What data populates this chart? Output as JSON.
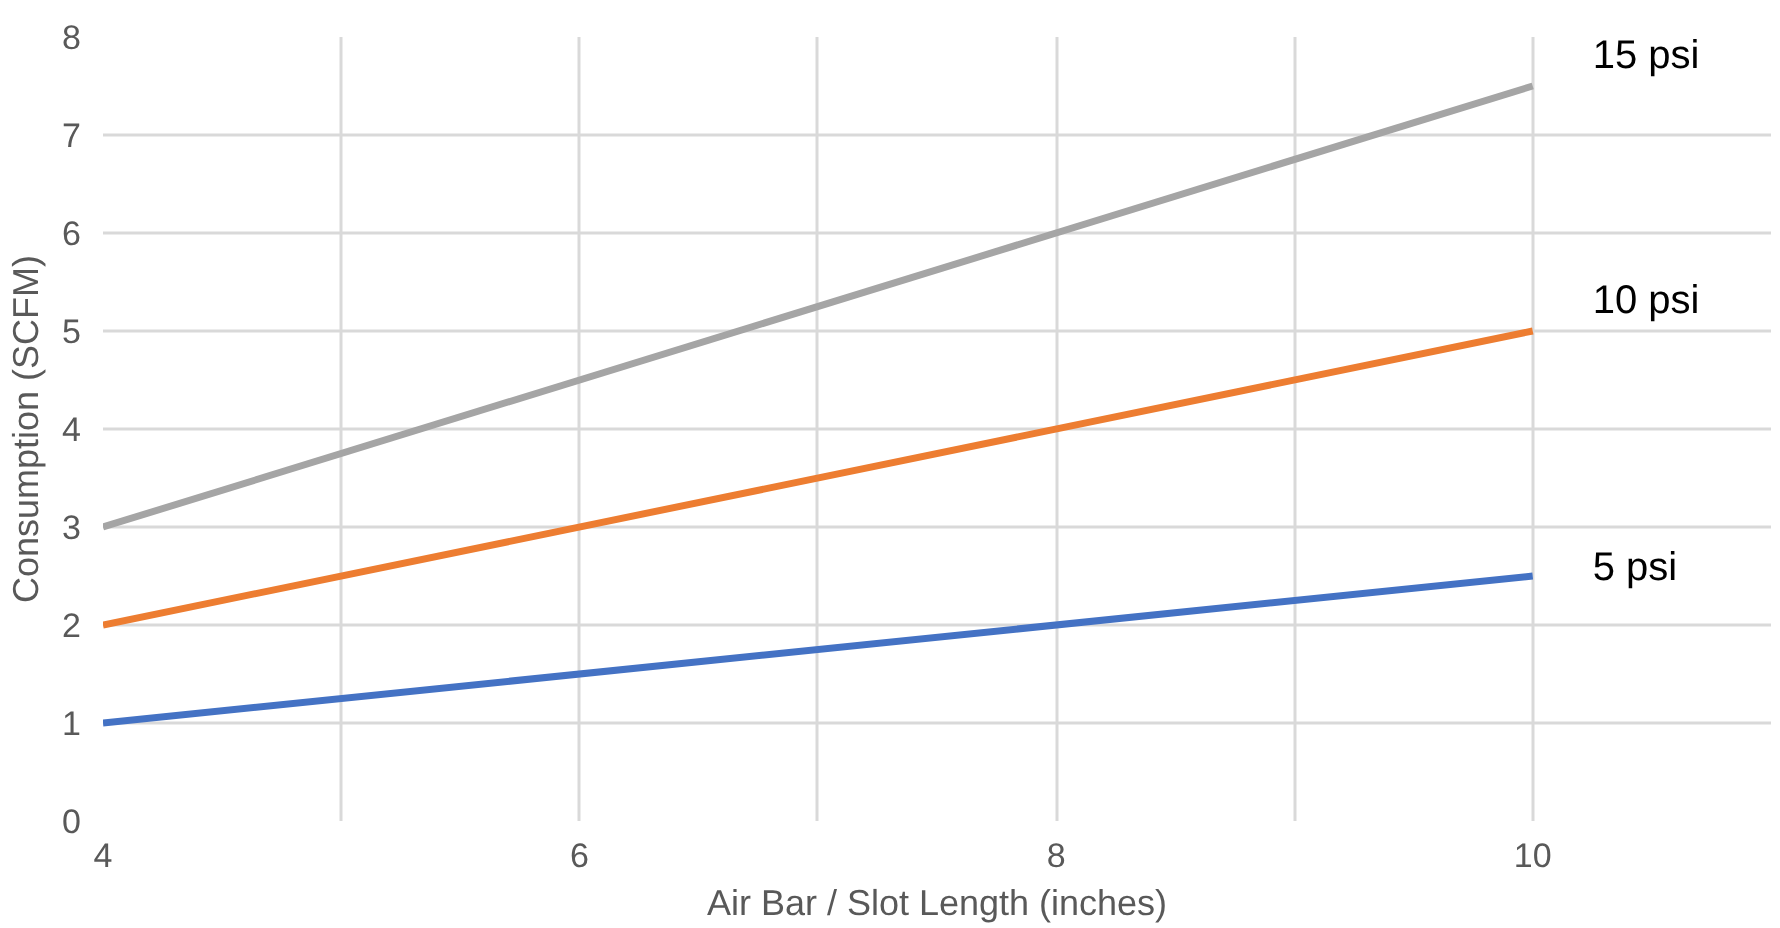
{
  "chart_data": {
    "type": "line",
    "xlabel": "Air Bar / Slot Length (inches)",
    "ylabel": "Consumption (SCFM)",
    "x": [
      4,
      10
    ],
    "series": [
      {
        "name": "5 psi",
        "color": "#4472c4",
        "values": [
          1,
          2.5
        ]
      },
      {
        "name": "10 psi",
        "color": "#ed7d31",
        "values": [
          2,
          5
        ]
      },
      {
        "name": "15 psi",
        "color": "#a5a5a5",
        "values": [
          3,
          7.5
        ]
      }
    ],
    "xlim": [
      4,
      11
    ],
    "ylim": [
      0,
      8
    ],
    "xticks": [
      4,
      {
        "value": 5,
        "label": null
      },
      6,
      {
        "value": 7,
        "label": null
      },
      8,
      {
        "value": 9,
        "label": null
      },
      10
    ],
    "yticks": [
      0,
      1,
      2,
      3,
      4,
      5,
      6,
      7,
      8
    ],
    "grid": true,
    "legend": false,
    "marker": "none",
    "line_style": "solid"
  }
}
